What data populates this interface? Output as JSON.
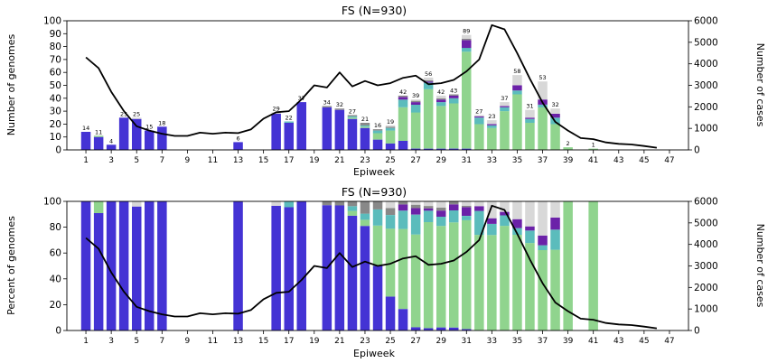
{
  "chart_data": [
    {
      "type": "bar",
      "title": "FS (N=930)",
      "xlabel": "Epiweek",
      "ylabel": "Number of genomes",
      "y2label": "Number of cases",
      "ylim": [
        0,
        100
      ],
      "y2lim": [
        0,
        6000
      ],
      "yticks": [
        0,
        10,
        20,
        30,
        40,
        50,
        60,
        70,
        80,
        90,
        100
      ],
      "y2ticks": [
        0,
        1000,
        2000,
        3000,
        4000,
        5000,
        6000
      ],
      "xticks": [
        1,
        3,
        5,
        7,
        9,
        11,
        13,
        15,
        17,
        19,
        21,
        23,
        25,
        27,
        29,
        31,
        33,
        35,
        37,
        39,
        41,
        43,
        45,
        47
      ],
      "xlim": [
        -0.5,
        48.5
      ],
      "stacked": true,
      "epiweeks": [
        1,
        2,
        3,
        4,
        5,
        6,
        7,
        13,
        16,
        17,
        18,
        20,
        21,
        22,
        23,
        24,
        25,
        26,
        27,
        28,
        29,
        30,
        31,
        32,
        33,
        34,
        35,
        36,
        37,
        38,
        39,
        41
      ],
      "bar_labels": [
        14,
        11,
        4,
        25,
        25,
        15,
        18,
        6,
        29,
        22,
        37,
        34,
        32,
        27,
        21,
        16,
        19,
        42,
        39,
        56,
        42,
        43,
        89,
        27,
        23,
        37,
        58,
        31,
        53,
        32,
        2,
        1
      ],
      "series": [
        {
          "color": "#4433d4",
          "values": [
            14,
            10,
            4,
            25,
            24,
            15,
            18,
            6,
            28,
            21,
            37,
            33,
            31,
            24,
            17,
            8,
            5,
            7,
            1,
            1,
            1,
            1,
            1,
            0,
            0,
            0,
            0,
            0,
            0,
            0,
            0,
            0
          ]
        },
        {
          "color": "#90d48e",
          "values": [
            0,
            1,
            0,
            0,
            0,
            0,
            0,
            0,
            0,
            0,
            0,
            0,
            0,
            1,
            1,
            5,
            10,
            26,
            28,
            46,
            33,
            35,
            75,
            20,
            17,
            30,
            43,
            21,
            33,
            20,
            2,
            1
          ]
        },
        {
          "color": "#5bbcbc",
          "values": [
            0,
            0,
            0,
            0,
            0,
            0,
            0,
            0,
            0,
            1,
            0,
            0,
            0,
            1,
            1,
            2,
            2,
            6,
            6,
            5,
            3,
            4,
            3,
            5,
            2,
            3,
            3,
            3,
            2,
            5,
            0,
            0
          ]
        },
        {
          "color": "#6b21a8",
          "values": [
            0,
            0,
            0,
            0,
            0,
            0,
            0,
            0,
            0,
            0,
            0,
            0,
            0,
            0,
            0,
            0,
            0,
            2,
            2,
            1,
            2,
            2,
            6,
            1,
            1,
            1,
            4,
            1,
            4,
            3,
            0,
            0
          ]
        },
        {
          "color": "#888888",
          "values": [
            0,
            0,
            0,
            0,
            0,
            0,
            0,
            0,
            0,
            0,
            0,
            1,
            1,
            1,
            2,
            1,
            1,
            1,
            1,
            1,
            1,
            1,
            1,
            0,
            0,
            0,
            0,
            0,
            0,
            0,
            0,
            0
          ]
        },
        {
          "color": "#d8d8d8",
          "values": [
            0,
            0,
            0,
            0,
            1,
            0,
            0,
            0,
            1,
            0,
            0,
            0,
            0,
            0,
            0,
            0,
            1,
            0,
            1,
            2,
            2,
            0,
            3,
            1,
            3,
            3,
            8,
            6,
            14,
            4,
            0,
            0
          ]
        }
      ],
      "line": {
        "color": "#000000",
        "x": [
          1,
          2,
          3,
          4,
          5,
          6,
          7,
          8,
          9,
          10,
          11,
          12,
          13,
          14,
          15,
          16,
          17,
          18,
          19,
          20,
          21,
          22,
          23,
          24,
          25,
          26,
          27,
          28,
          29,
          30,
          31,
          32,
          33,
          34,
          35,
          36,
          37,
          38,
          39,
          40,
          41,
          42,
          43,
          44,
          45,
          46
        ],
        "values": [
          4300,
          3800,
          2700,
          1800,
          1100,
          900,
          750,
          650,
          650,
          800,
          750,
          800,
          780,
          950,
          1450,
          1750,
          1800,
          2350,
          3000,
          2900,
          3600,
          2950,
          3200,
          3000,
          3100,
          3350,
          3450,
          3050,
          3100,
          3250,
          3650,
          4200,
          5800,
          5600,
          4500,
          3300,
          2200,
          1300,
          900,
          550,
          500,
          350,
          280,
          250,
          180,
          100
        ]
      }
    },
    {
      "type": "bar",
      "title": "FS (N=930)",
      "xlabel": "Epiweek",
      "ylabel": "Percent of genomes",
      "y2label": "Number of cases",
      "ylim": [
        0,
        100
      ],
      "y2lim": [
        0,
        6000
      ],
      "yticks": [
        0,
        20,
        40,
        60,
        80,
        100
      ],
      "y2ticks": [
        0,
        1000,
        2000,
        3000,
        4000,
        5000,
        6000
      ],
      "xticks": [
        1,
        3,
        5,
        7,
        9,
        11,
        13,
        15,
        17,
        19,
        21,
        23,
        25,
        27,
        29,
        31,
        33,
        35,
        37,
        39,
        41,
        43,
        45,
        47
      ],
      "xlim": [
        -0.5,
        48.5
      ],
      "stacked": true,
      "percent": true
    }
  ]
}
